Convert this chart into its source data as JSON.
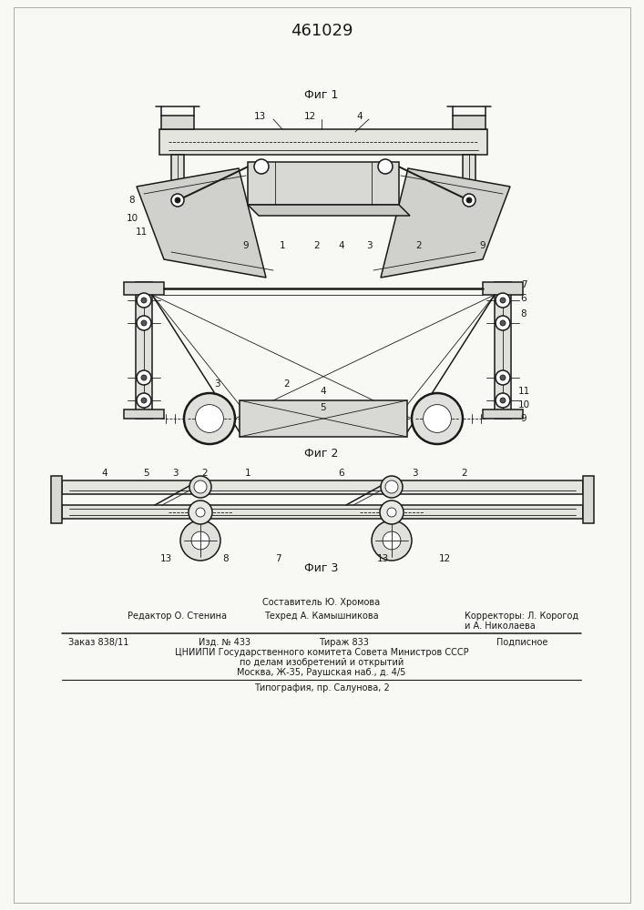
{
  "title": "461029",
  "bg_color": "#f8f8f5",
  "line_color": "#1a1a1a",
  "footer": {
    "composer": "Составитель Ю. Хромова",
    "editor": "Редактор О. Стенина",
    "techred": "Техред А. Камышникова",
    "correctors": "Корректоры: Л. Корогод",
    "correctors2": "и А. Николаева",
    "order": "Заказ 838/11",
    "izd": "Изд. № 433",
    "tirazh": "Тираж 833",
    "podpisnoe": "Подписное",
    "cniip": "ЦНИИПИ Государственного комитета Совета Министров СССР",
    "cniip2": "по делам изобретений и открытий",
    "cniip3": "Москва, Ж-35, Раушская наб., д. 4/5",
    "tipografia": "Типография, пр. Салунова, 2"
  },
  "fig1_caption": "Фиг 1",
  "fig2_caption": "Фиг 2",
  "fig3_caption": "Фиг 3"
}
